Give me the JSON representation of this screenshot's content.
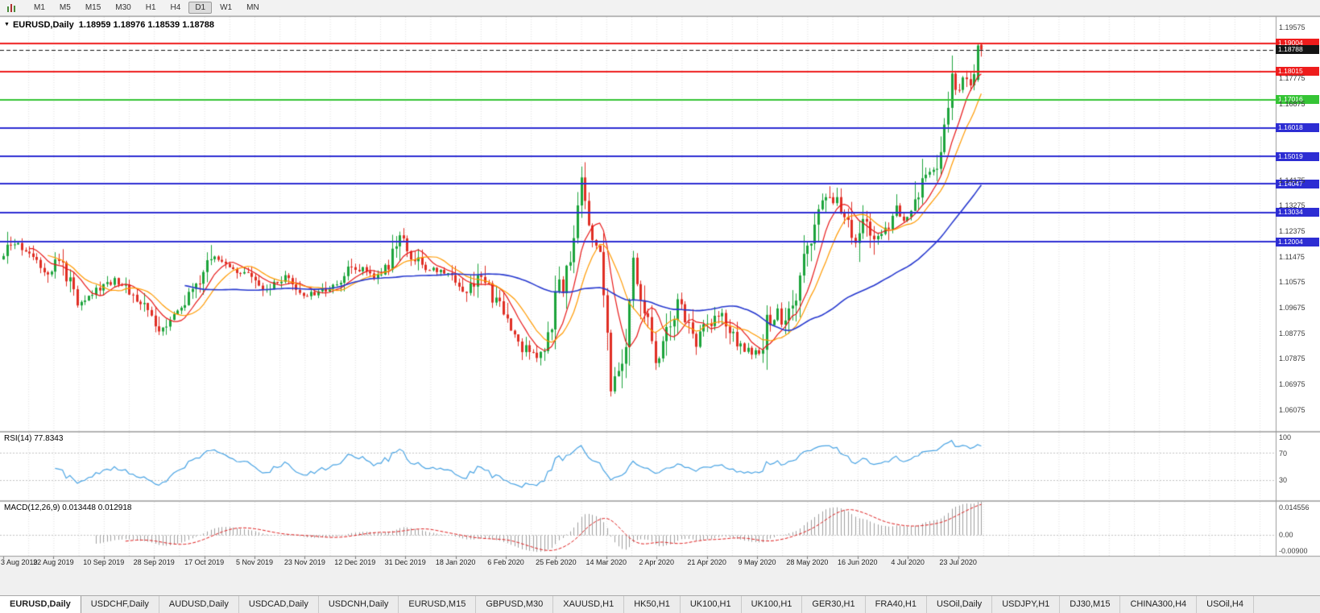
{
  "ui": {
    "toolbar": {
      "timeframes": [
        "M1",
        "M5",
        "M15",
        "M30",
        "H1",
        "H4",
        "D1",
        "W1",
        "MN"
      ],
      "active": "D1"
    },
    "tabs": {
      "items": [
        "EURUSD,Daily",
        "USDCHF,Daily",
        "AUDUSD,Daily",
        "USDCAD,Daily",
        "USDCNH,Daily",
        "EURUSD,M15",
        "GBPUSD,M30",
        "XAUUSD,H1",
        "HK50,H1",
        "UK100,H1",
        "UK100,H1",
        "GER30,H1",
        "FRA40,H1",
        "USOil,Daily",
        "USDJPY,H1",
        "DJ30,M15",
        "CHINA300,H4",
        "USOil,H4"
      ],
      "active_index": 0
    }
  },
  "icons": {
    "dropdown_arrow": "▼"
  },
  "chart_data": {
    "type": "candlestick",
    "symbol_title": "EURUSD,Daily",
    "ohlc_text": "1.18959 1.18976 1.18539 1.18788",
    "current_bar": {
      "open": 1.18959,
      "high": 1.18976,
      "low": 1.18539,
      "close": 1.18788
    },
    "price_axis": {
      "min": 1.0533,
      "max": 1.1994,
      "labels_start": 1.06075,
      "labels_step": 0.009,
      "labels_count": 16,
      "decimals": 5
    },
    "x_labels": [
      "3 Aug 2019",
      "22 Aug 2019",
      "10 Sep 2019",
      "28 Sep 2019",
      "17 Oct 2019",
      "5 Nov 2019",
      "23 Nov 2019",
      "12 Dec 2019",
      "31 Dec 2019",
      "18 Jan 2020",
      "6 Feb 2020",
      "25 Feb 2020",
      "14 Mar 2020",
      "2 Apr 2020",
      "21 Apr 2020",
      "9 May 2020",
      "28 May 2020",
      "16 Jun 2020",
      "4 Jul 2020",
      "23 Jul 2020"
    ],
    "levels": [
      {
        "price": 1.19004,
        "label": "1.19004",
        "color": "#ee1c1c",
        "kind": "resistance"
      },
      {
        "price": 1.18015,
        "label": "1.18015",
        "color": "#ee1c1c",
        "kind": "resistance"
      },
      {
        "price": 1.17016,
        "label": "1.17016",
        "color": "#35c435",
        "kind": "support"
      },
      {
        "price": 1.16018,
        "label": "1.16018",
        "color": "#2d2dd3",
        "kind": "support"
      },
      {
        "price": 1.15019,
        "label": "1.15019",
        "color": "#2d2dd3",
        "kind": "support"
      },
      {
        "price": 1.14047,
        "label": "1.14047",
        "color": "#2d2dd3",
        "kind": "support"
      },
      {
        "price": 1.13034,
        "label": "1.13034",
        "color": "#2d2dd3",
        "kind": "support"
      },
      {
        "price": 1.12004,
        "label": "1.12004",
        "color": "#2d2dd3",
        "kind": "support"
      }
    ],
    "current_price": {
      "price": 1.18788,
      "label": "1.18788",
      "color": "#141414"
    },
    "bars": 265,
    "close_anchors": [
      [
        0,
        1.1108
      ],
      [
        2,
        1.1195
      ],
      [
        7,
        1.1168
      ],
      [
        12,
        1.11
      ],
      [
        15,
        1.114
      ],
      [
        20,
        1.0992
      ],
      [
        25,
        1.1028
      ],
      [
        30,
        1.1072
      ],
      [
        35,
        1.1015
      ],
      [
        40,
        1.094
      ],
      [
        42,
        1.0896
      ],
      [
        47,
        1.0958
      ],
      [
        52,
        1.1035
      ],
      [
        56,
        1.1148
      ],
      [
        62,
        1.1112
      ],
      [
        66,
        1.1078
      ],
      [
        70,
        1.1022
      ],
      [
        76,
        1.1068
      ],
      [
        80,
        1.1012
      ],
      [
        85,
        1.1018
      ],
      [
        90,
        1.1058
      ],
      [
        95,
        1.112
      ],
      [
        100,
        1.1078
      ],
      [
        104,
        1.1118
      ],
      [
        107,
        1.1208
      ],
      [
        110,
        1.116
      ],
      [
        113,
        1.1108
      ],
      [
        120,
        1.1092
      ],
      [
        125,
        1.1026
      ],
      [
        128,
        1.1088
      ],
      [
        135,
        1.0948
      ],
      [
        140,
        1.0832
      ],
      [
        144,
        1.0786
      ],
      [
        147,
        1.0888
      ],
      [
        150,
        1.1026
      ],
      [
        153,
        1.1135
      ],
      [
        156,
        1.1448
      ],
      [
        159,
        1.1186
      ],
      [
        161,
        1.1176
      ],
      [
        164,
        1.0692
      ],
      [
        166,
        1.0724
      ],
      [
        168,
        1.0795
      ],
      [
        170,
        1.1138
      ],
      [
        173,
        1.0962
      ],
      [
        176,
        1.0792
      ],
      [
        179,
        1.0868
      ],
      [
        182,
        1.0978
      ],
      [
        185,
        1.0912
      ],
      [
        187,
        1.086
      ],
      [
        190,
        1.0902
      ],
      [
        194,
        1.0952
      ],
      [
        197,
        1.0872
      ],
      [
        199,
        1.0835
      ],
      [
        202,
        1.0808
      ],
      [
        204,
        1.0812
      ],
      [
        206,
        1.0912
      ],
      [
        209,
        1.0952
      ],
      [
        211,
        1.0902
      ],
      [
        214,
        1.0988
      ],
      [
        216,
        1.1132
      ],
      [
        220,
        1.1288
      ],
      [
        223,
        1.1372
      ],
      [
        226,
        1.1326
      ],
      [
        230,
        1.1178
      ],
      [
        232,
        1.1306
      ],
      [
        235,
        1.122
      ],
      [
        237,
        1.1233
      ],
      [
        241,
        1.1308
      ],
      [
        243,
        1.1282
      ],
      [
        245,
        1.13
      ],
      [
        248,
        1.1408
      ],
      [
        251,
        1.1446
      ],
      [
        254,
        1.1596
      ],
      [
        256,
        1.1748
      ],
      [
        258,
        1.1722
      ],
      [
        260,
        1.1778
      ],
      [
        261,
        1.1762
      ],
      [
        262,
        1.1803
      ],
      [
        263,
        1.1893
      ],
      [
        264,
        1.1879
      ]
    ],
    "last_bars": [
      {
        "open": 1.1772,
        "high": 1.19004,
        "low": 1.1765,
        "close": 1.1893
      },
      {
        "open": 1.18959,
        "high": 1.18976,
        "low": 1.18539,
        "close": 1.18788
      }
    ],
    "candle_colors": {
      "up": "#1ca43b",
      "down": "#e02e24"
    },
    "moving_averages": [
      {
        "period": 8,
        "color": "#e81717",
        "width": 1.2
      },
      {
        "period": 13,
        "color": "#ff9a00",
        "width": 1.2
      },
      {
        "period": 50,
        "color": "#2638cf",
        "width": 1.6
      }
    ],
    "rsi": {
      "label": "RSI(14) 77.8343",
      "period": 14,
      "current": 77.8343,
      "color": "#4aa4e4",
      "levels": [
        70,
        30
      ],
      "axis": [
        {
          "label": "100",
          "value": 100
        },
        {
          "label": "70",
          "value": 70
        },
        {
          "label": "30",
          "value": 30
        }
      ]
    },
    "macd": {
      "label": "MACD(12,26,9) 0.013448 0.012918",
      "fast": 12,
      "slow": 26,
      "signal_period": 9,
      "current_macd": 0.013448,
      "current_signal": 0.012918,
      "hist_color": "#a0a0a0",
      "signal_color": "#e02020",
      "scale_max": 0.014556,
      "scale_min": -0.009,
      "axis_top": "0.014556",
      "axis_zero": "0.00",
      "axis_bottom": "-0.00900"
    }
  }
}
